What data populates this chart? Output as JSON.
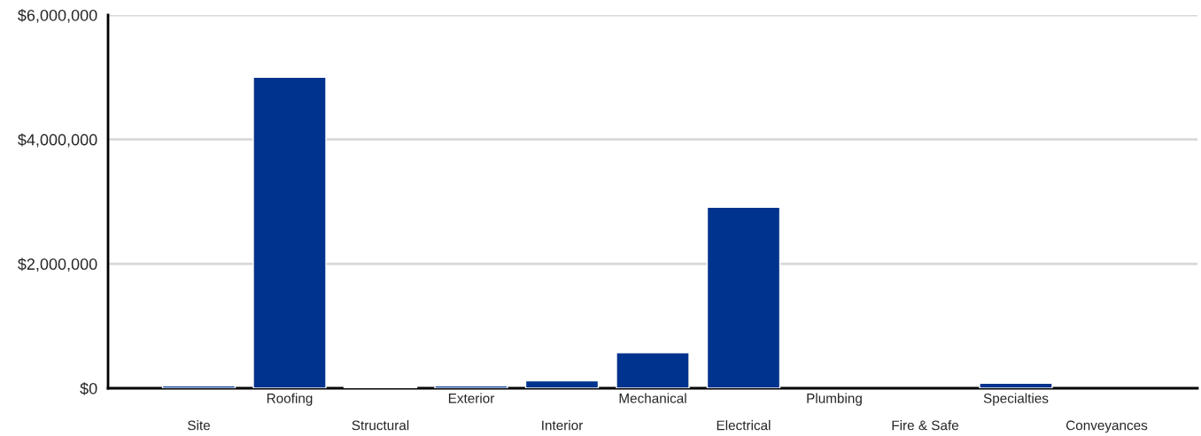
{
  "chart_data": {
    "type": "bar",
    "categories": [
      "Site",
      "Roofing",
      "Structural",
      "Exterior",
      "Interior",
      "Mechanical",
      "Electrical",
      "Plumbing",
      "Fire & Safe",
      "Specialties",
      "Conveyances"
    ],
    "values": [
      40000,
      5000000,
      20000,
      40000,
      120000,
      570000,
      2910000,
      null,
      null,
      80000,
      null
    ],
    "color": "#00338d",
    "ylim": [
      0,
      6000000
    ],
    "yticks": [
      {
        "value": 0,
        "label": "$0"
      },
      {
        "value": 2000000,
        "label": "$2,000,000"
      },
      {
        "value": 4000000,
        "label": "$4,000,000"
      },
      {
        "value": 6000000,
        "label": "$6,000,000"
      }
    ],
    "grid": "y"
  }
}
